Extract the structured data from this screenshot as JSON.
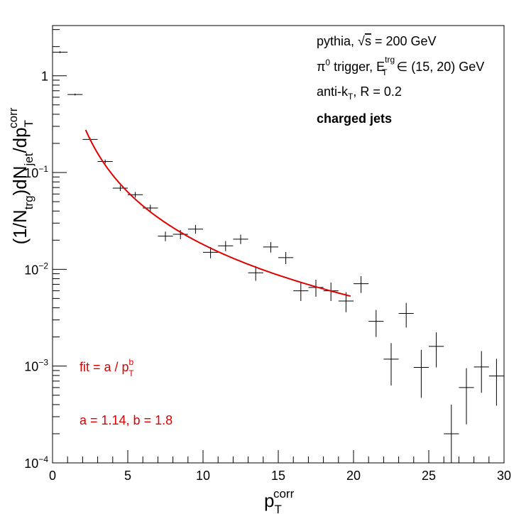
{
  "chart_data": {
    "type": "scatter",
    "x_axis": {
      "label_main": "p",
      "label_sub": "T",
      "label_sup": "corr",
      "range": [
        0,
        30
      ],
      "ticks": [
        0,
        5,
        10,
        15,
        20,
        25,
        30
      ],
      "tick_labels": [
        "0",
        "5",
        "10",
        "15",
        "20",
        "25",
        "30"
      ]
    },
    "y_axis": {
      "label_parts": {
        "a": "(1/N",
        "a_sub": "trg",
        "b": ")dN",
        "b_sub": "jet",
        "c": "/dp",
        "c_sub": "T",
        "c_sup": "corr"
      },
      "scale": "log",
      "range": [
        0.0001,
        3.3
      ],
      "ticks": [
        0.0001,
        0.001,
        0.01,
        0.1,
        1
      ],
      "tick_labels": [
        {
          "base": "10",
          "exp": "−4"
        },
        {
          "base": "10",
          "exp": "−3"
        },
        {
          "base": "10",
          "exp": "−2"
        },
        {
          "base": "10",
          "exp": "−1"
        },
        {
          "base": "1",
          "exp": ""
        }
      ]
    },
    "series": [
      {
        "marker": "cross-errorbar",
        "color": "#000000",
        "bin_half_width": 0.5,
        "points": [
          {
            "x": 0.5,
            "y": 1.75,
            "err": 0.04
          },
          {
            "x": 1.5,
            "y": 0.64,
            "err": 0.015
          },
          {
            "x": 2.5,
            "y": 0.22,
            "err": 0.009
          },
          {
            "x": 3.5,
            "y": 0.13,
            "err": 0.006
          },
          {
            "x": 4.5,
            "y": 0.069,
            "err": 0.0045
          },
          {
            "x": 5.5,
            "y": 0.059,
            "err": 0.004
          },
          {
            "x": 6.5,
            "y": 0.043,
            "err": 0.0035
          },
          {
            "x": 7.5,
            "y": 0.022,
            "err": 0.0025
          },
          {
            "x": 8.5,
            "y": 0.023,
            "err": 0.0025
          },
          {
            "x": 9.5,
            "y": 0.026,
            "err": 0.0027
          },
          {
            "x": 10.5,
            "y": 0.015,
            "err": 0.002
          },
          {
            "x": 11.5,
            "y": 0.0175,
            "err": 0.0021
          },
          {
            "x": 12.5,
            "y": 0.0205,
            "err": 0.0023
          },
          {
            "x": 13.5,
            "y": 0.0092,
            "err": 0.0016
          },
          {
            "x": 14.5,
            "y": 0.017,
            "err": 0.0021
          },
          {
            "x": 15.5,
            "y": 0.0132,
            "err": 0.0019
          },
          {
            "x": 16.5,
            "y": 0.006,
            "err": 0.0013
          },
          {
            "x": 17.5,
            "y": 0.0065,
            "err": 0.0013
          },
          {
            "x": 18.5,
            "y": 0.006,
            "err": 0.0013
          },
          {
            "x": 19.5,
            "y": 0.0047,
            "err": 0.0011
          },
          {
            "x": 20.5,
            "y": 0.0071,
            "err": 0.0014
          },
          {
            "x": 21.5,
            "y": 0.0029,
            "err": 0.0009
          },
          {
            "x": 22.5,
            "y": 0.00118,
            "err": 0.00055
          },
          {
            "x": 23.5,
            "y": 0.0035,
            "err": 0.001
          },
          {
            "x": 24.5,
            "y": 0.00097,
            "err": 0.0005
          },
          {
            "x": 25.5,
            "y": 0.0016,
            "err": 0.00063
          },
          {
            "x": 26.5,
            "y": 0.0002,
            "err": 0.0002
          },
          {
            "x": 27.5,
            "y": 0.0006,
            "err": 0.00035
          },
          {
            "x": 28.5,
            "y": 0.00098,
            "err": 0.00045
          },
          {
            "x": 29.5,
            "y": 0.00079,
            "err": 0.0004
          }
        ]
      },
      {
        "marker": "line",
        "color": "#e00000",
        "function": "a / x^b",
        "a": 1.14,
        "b": 1.8,
        "x_range": [
          2.2,
          19.8
        ]
      }
    ],
    "annotations": {
      "line1_pre": "pythia, ",
      "line1_sqrt": "√",
      "line1_s": "s",
      "line1_post": " = 200 GeV",
      "line2_pi": "π",
      "line2_pi_sup": "0",
      "line2_mid": " trigger, E",
      "line2_E_sup": "trg",
      "line2_E_sub": "T",
      "line2_post": " ∈ (15, 20) GeV",
      "line3_pre": "anti-k",
      "line3_sub": "T",
      "line3_post": ", R = 0.2",
      "line4": "charged jets",
      "fit_pre": "fit = a / p",
      "fit_sup": "b",
      "fit_sub": "T",
      "fit_params": "a = 1.14, b = 1.8"
    },
    "grid": false,
    "legend": "none"
  }
}
